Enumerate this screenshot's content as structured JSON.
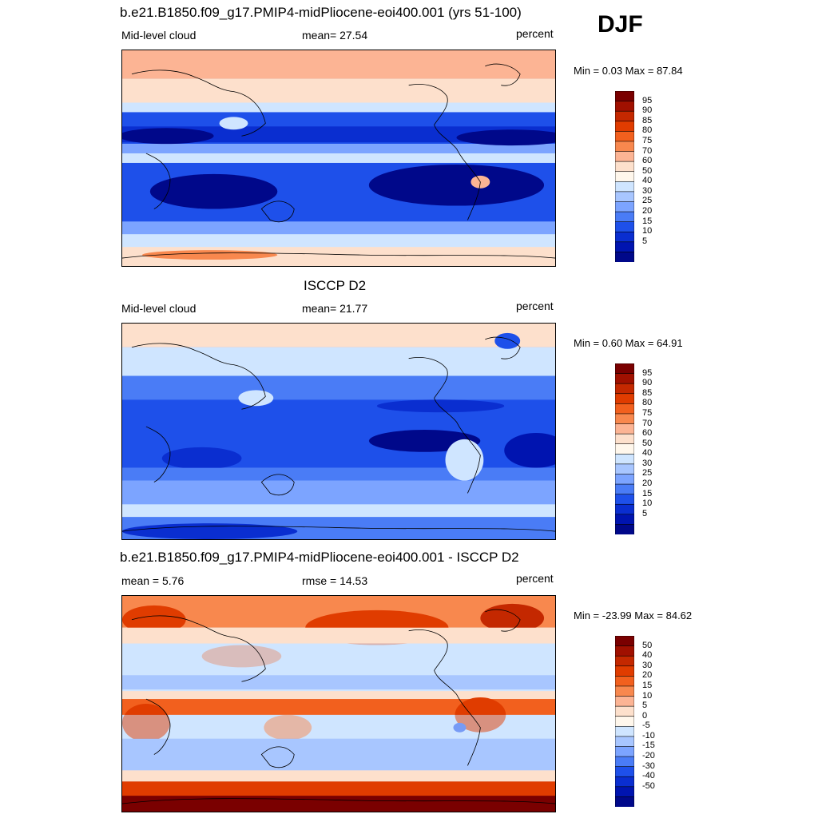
{
  "season": "DJF",
  "panels": [
    {
      "title": "b.e21.B1850.f09_g17.PMIP4-midPliocene-eoi400.001 (yrs 51-100)",
      "left_label": "Mid-level cloud",
      "center_label": "mean=  27.54",
      "right_label": "percent",
      "minmax": "Min =   0.03 Max =  87.84",
      "colorbar": {
        "labels": [
          "95",
          "90",
          "85",
          "80",
          "75",
          "70",
          "60",
          "50",
          "40",
          "30",
          "25",
          "20",
          "15",
          "10",
          "5"
        ],
        "colors": [
          "#7a0000",
          "#a01000",
          "#c42800",
          "#e03c00",
          "#f2601e",
          "#f8884e",
          "#fcb494",
          "#fde0cc",
          "#fff7ec",
          "#cfe5ff",
          "#a8c6ff",
          "#7ca4ff",
          "#4a7cf6",
          "#1e50ea",
          "#0a2ed0",
          "#0014b0",
          "#00088a"
        ]
      }
    },
    {
      "title": "ISCCP D2",
      "left_label": "Mid-level cloud",
      "center_label": "mean=  21.77",
      "right_label": "percent",
      "minmax": "Min =   0.60 Max =  64.91",
      "colorbar": {
        "labels": [
          "95",
          "90",
          "85",
          "80",
          "75",
          "70",
          "60",
          "50",
          "40",
          "30",
          "25",
          "20",
          "15",
          "10",
          "5"
        ],
        "colors": [
          "#7a0000",
          "#a01000",
          "#c42800",
          "#e03c00",
          "#f2601e",
          "#f8884e",
          "#fcb494",
          "#fde0cc",
          "#fff7ec",
          "#cfe5ff",
          "#a8c6ff",
          "#7ca4ff",
          "#4a7cf6",
          "#1e50ea",
          "#0a2ed0",
          "#0014b0",
          "#00088a"
        ]
      }
    },
    {
      "title": "b.e21.B1850.f09_g17.PMIP4-midPliocene-eoi400.001 - ISCCP D2",
      "left_label": "mean =   5.76",
      "center_label": "rmse =  14.53",
      "right_label": "percent",
      "minmax": "Min = -23.99 Max =  84.62",
      "colorbar": {
        "labels": [
          "50",
          "40",
          "30",
          "20",
          "15",
          "10",
          "5",
          "0",
          "-5",
          "-10",
          "-15",
          "-20",
          "-30",
          "-40",
          "-50"
        ],
        "colors": [
          "#7a0000",
          "#a01000",
          "#c42800",
          "#e03c00",
          "#f2601e",
          "#f8884e",
          "#fcb494",
          "#fde0cc",
          "#fff7ec",
          "#cfe5ff",
          "#a8c6ff",
          "#7ca4ff",
          "#4a7cf6",
          "#1e50ea",
          "#0a2ed0",
          "#0014b0",
          "#00088a"
        ]
      }
    }
  ]
}
